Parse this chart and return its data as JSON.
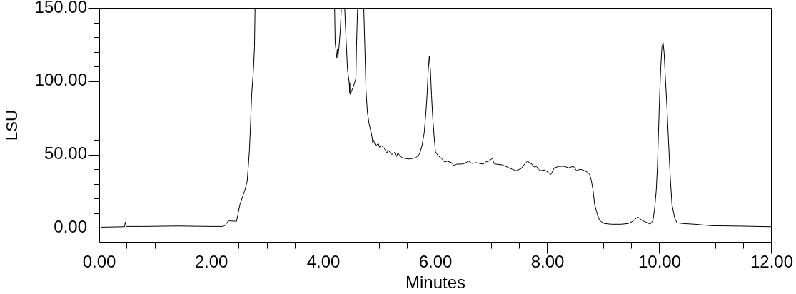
{
  "chart_data": {
    "type": "line",
    "xlabel": "Minutes",
    "ylabel": "LSU",
    "color": "#000000",
    "marker": "none",
    "x": [
      0.04,
      0.45,
      0.465,
      0.48,
      0.8,
      1.4,
      1.6,
      2.0,
      2.2,
      2.24,
      2.3,
      2.32,
      2.4,
      2.45,
      2.51,
      2.6,
      2.64,
      2.66,
      2.68,
      2.7,
      2.72,
      2.75,
      2.77,
      2.78,
      3.5,
      4.2,
      4.21,
      4.24,
      4.25,
      4.26,
      4.28,
      4.3,
      4.32,
      4.35,
      4.38,
      4.4,
      4.43,
      4.46,
      4.47,
      4.48,
      4.51,
      4.55,
      4.58,
      4.59,
      4.61,
      4.66,
      4.72,
      4.74,
      4.76,
      4.785,
      4.815,
      4.85,
      4.87,
      4.88,
      4.895,
      4.91,
      4.935,
      4.98,
      5.0,
      5.04,
      5.1,
      5.13,
      5.16,
      5.19,
      5.22,
      5.27,
      5.3,
      5.33,
      5.36,
      5.4,
      5.44,
      5.53,
      5.61,
      5.65,
      5.7,
      5.73,
      5.76,
      5.8,
      5.83,
      5.85,
      5.87,
      5.89,
      5.91,
      5.93,
      5.95,
      5.975,
      6.0,
      6.04,
      6.12,
      6.16,
      6.21,
      6.29,
      6.33,
      6.38,
      6.46,
      6.52,
      6.59,
      6.65,
      6.72,
      6.85,
      6.9,
      6.95,
      7.02,
      7.04,
      7.08,
      7.19,
      7.31,
      7.37,
      7.44,
      7.53,
      7.59,
      7.64,
      7.68,
      7.72,
      7.76,
      7.8,
      7.84,
      7.87,
      7.95,
      8.06,
      8.12,
      8.21,
      8.29,
      8.38,
      8.46,
      8.52,
      8.58,
      8.63,
      8.71,
      8.75,
      8.78,
      8.81,
      8.84,
      8.89,
      8.93,
      9.01,
      9.14,
      9.31,
      9.44,
      9.52,
      9.61,
      9.69,
      9.78,
      9.83,
      9.88,
      9.91,
      9.94,
      9.96,
      9.98,
      10.0,
      10.02,
      10.04,
      10.06,
      10.08,
      10.1,
      10.13,
      10.16,
      10.19,
      10.22,
      10.27,
      10.31,
      10.41,
      10.63,
      10.92,
      11.48,
      11.99
    ],
    "values": [
      0.5,
      0.8,
      4,
      1,
      1,
      1.3,
      1.2,
      1,
      1,
      1.5,
      4.5,
      4.8,
      4.6,
      4.5,
      16,
      26,
      32,
      42,
      53,
      71,
      91,
      107,
      123,
      150,
      null,
      150,
      126,
      116,
      122,
      117,
      124,
      134,
      150,
      null,
      150,
      132,
      108,
      99,
      92,
      91,
      94,
      98,
      102,
      123,
      150,
      null,
      150,
      123,
      94,
      79,
      71,
      65.5,
      61.5,
      58,
      60,
      58,
      56,
      57.5,
      55,
      56,
      53.5,
      51,
      53,
      51.5,
      50,
      51.5,
      48.5,
      51,
      49.5,
      48,
      47.5,
      47,
      47.5,
      48,
      49.5,
      52,
      56,
      65,
      79,
      90.5,
      107,
      117,
      108,
      90.5,
      76,
      63,
      52,
      49.5,
      47,
      45,
      45.5,
      44.5,
      42.5,
      43.5,
      43.5,
      44,
      45.5,
      44,
      44.5,
      43.5,
      45,
      45.5,
      47.5,
      44,
      43.5,
      43,
      41,
      40,
      39,
      40.5,
      43.5,
      45.5,
      44.5,
      43.5,
      41.5,
      42,
      40,
      39,
      39.5,
      36.5,
      41,
      42,
      42,
      41,
      42,
      39,
      40,
      39.5,
      38,
      36.5,
      32.5,
      26,
      16,
      9,
      5,
      3,
      2.5,
      2.5,
      3,
      4.5,
      7.5,
      5,
      3.5,
      2.5,
      5,
      13,
      26,
      42,
      66,
      90.5,
      110,
      123,
      126.5,
      119.5,
      103.5,
      82.5,
      58,
      34,
      16,
      6.5,
      3.5,
      3,
      2.5,
      1.5,
      1.2,
      0.8
    ],
    "xlim": [
      0,
      12
    ],
    "xticks": [
      {
        "value": 0,
        "label": "0.00"
      },
      {
        "value": 0.5,
        "label": null
      },
      {
        "value": 1,
        "label": null
      },
      {
        "value": 1.5,
        "label": null
      },
      {
        "value": 2,
        "label": "2.00"
      },
      {
        "value": 2.5,
        "label": null
      },
      {
        "value": 3,
        "label": null
      },
      {
        "value": 3.5,
        "label": null
      },
      {
        "value": 4,
        "label": "4.00"
      },
      {
        "value": 4.5,
        "label": null
      },
      {
        "value": 5,
        "label": null
      },
      {
        "value": 5.5,
        "label": null
      },
      {
        "value": 6,
        "label": "6.00"
      },
      {
        "value": 6.5,
        "label": null
      },
      {
        "value": 7,
        "label": null
      },
      {
        "value": 7.5,
        "label": null
      },
      {
        "value": 8,
        "label": "8.00"
      },
      {
        "value": 8.5,
        "label": null
      },
      {
        "value": 9,
        "label": null
      },
      {
        "value": 9.5,
        "label": null
      },
      {
        "value": 10,
        "label": "10.00"
      },
      {
        "value": 10.5,
        "label": null
      },
      {
        "value": 11,
        "label": null
      },
      {
        "value": 11.5,
        "label": null
      },
      {
        "value": 12,
        "label": "12.00"
      }
    ],
    "ylim": [
      -10,
      150
    ],
    "yticks": [
      {
        "value": -10,
        "label": null
      },
      {
        "value": 0,
        "label": "0.00"
      },
      {
        "value": 10,
        "label": null
      },
      {
        "value": 20,
        "label": null
      },
      {
        "value": 30,
        "label": null
      },
      {
        "value": 40,
        "label": null
      },
      {
        "value": 50,
        "label": "50.00"
      },
      {
        "value": 60,
        "label": null
      },
      {
        "value": 70,
        "label": null
      },
      {
        "value": 80,
        "label": null
      },
      {
        "value": 90,
        "label": null
      },
      {
        "value": 100,
        "label": "100.00"
      },
      {
        "value": 110,
        "label": null
      },
      {
        "value": 120,
        "label": null
      },
      {
        "value": 130,
        "label": null
      },
      {
        "value": 140,
        "label": null
      },
      {
        "value": 150,
        "label": "150.00"
      }
    ]
  }
}
